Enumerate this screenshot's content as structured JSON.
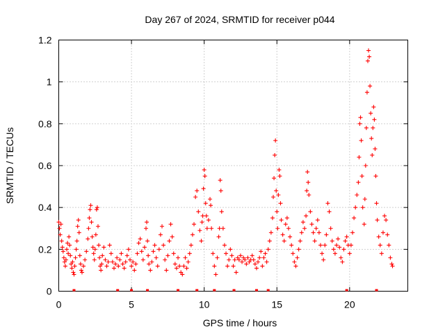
{
  "chart_data": {
    "type": "scatter",
    "title": "Day 267 of 2024, SRMTID for receiver p044",
    "xlabel": "GPS time / hours",
    "ylabel": "SRMTID / TECUs",
    "xlim": [
      0,
      24
    ],
    "ylim": [
      0,
      1.2
    ],
    "xticks": [
      0,
      5,
      10,
      15,
      20
    ],
    "xtick_labels": [
      "0",
      "5",
      "10",
      "15",
      "20"
    ],
    "yticks": [
      0,
      0.2,
      0.4,
      0.6,
      0.8,
      1.0,
      1.2
    ],
    "ytick_labels": [
      "0",
      "0.2",
      "0.4",
      "0.6",
      "0.8",
      "1",
      "1.2"
    ],
    "grid": true,
    "marker": "plus",
    "series": [
      {
        "name": "SRMTID",
        "color": "#ff0000",
        "points": [
          [
            0.0,
            0.33
          ],
          [
            0.05,
            0.3
          ],
          [
            0.1,
            0.27
          ],
          [
            0.15,
            0.32
          ],
          [
            0.2,
            0.24
          ],
          [
            0.25,
            0.21
          ],
          [
            0.3,
            0.19
          ],
          [
            0.35,
            0.16
          ],
          [
            0.4,
            0.14
          ],
          [
            0.45,
            0.12
          ],
          [
            0.5,
            0.15
          ],
          [
            0.55,
            0.2
          ],
          [
            0.6,
            0.23
          ],
          [
            0.65,
            0.18
          ],
          [
            0.7,
            0.26
          ],
          [
            0.75,
            0.22
          ],
          [
            0.8,
            0.17
          ],
          [
            0.85,
            0.13
          ],
          [
            0.9,
            0.11
          ],
          [
            0.95,
            0.14
          ],
          [
            1.0,
            0.09
          ],
          [
            1.05,
            0.08
          ],
          [
            1.1,
            0.12
          ],
          [
            1.15,
            0.16
          ],
          [
            1.2,
            0.2
          ],
          [
            1.25,
            0.24
          ],
          [
            1.3,
            0.31
          ],
          [
            1.35,
            0.34
          ],
          [
            1.4,
            0.28
          ],
          [
            1.45,
            0.17
          ],
          [
            1.5,
            0.13
          ],
          [
            1.55,
            0.1
          ],
          [
            1.6,
            0.09
          ],
          [
            1.7,
            0.12
          ],
          [
            1.8,
            0.15
          ],
          [
            1.9,
            0.19
          ],
          [
            2.0,
            0.25
          ],
          [
            2.05,
            0.3
          ],
          [
            2.1,
            0.35
          ],
          [
            2.15,
            0.39
          ],
          [
            2.2,
            0.41
          ],
          [
            2.25,
            0.33
          ],
          [
            2.3,
            0.26
          ],
          [
            2.35,
            0.21
          ],
          [
            2.4,
            0.18
          ],
          [
            2.45,
            0.15
          ],
          [
            2.5,
            0.2
          ],
          [
            2.55,
            0.27
          ],
          [
            2.6,
            0.39
          ],
          [
            2.65,
            0.4
          ],
          [
            2.7,
            0.31
          ],
          [
            2.75,
            0.22
          ],
          [
            2.8,
            0.16
          ],
          [
            2.85,
            0.12
          ],
          [
            2.9,
            0.1
          ],
          [
            2.95,
            0.13
          ],
          [
            3.0,
            0.17
          ],
          [
            3.1,
            0.21
          ],
          [
            3.2,
            0.15
          ],
          [
            3.3,
            0.12
          ],
          [
            3.4,
            0.14
          ],
          [
            3.5,
            0.22
          ],
          [
            3.6,
            0.18
          ],
          [
            3.7,
            0.14
          ],
          [
            3.8,
            0.11
          ],
          [
            3.9,
            0.13
          ],
          [
            4.0,
            0.16
          ],
          [
            4.1,
            0.12
          ],
          [
            4.2,
            0.15
          ],
          [
            4.3,
            0.18
          ],
          [
            4.4,
            0.13
          ],
          [
            4.5,
            0.11
          ],
          [
            4.6,
            0.14
          ],
          [
            4.7,
            0.17
          ],
          [
            4.8,
            0.2
          ],
          [
            4.9,
            0.15
          ],
          [
            5.0,
            0.12
          ],
          [
            5.1,
            0.14
          ],
          [
            5.2,
            0.1
          ],
          [
            5.3,
            0.13
          ],
          [
            5.4,
            0.18
          ],
          [
            5.5,
            0.23
          ],
          [
            5.6,
            0.25
          ],
          [
            5.7,
            0.19
          ],
          [
            5.8,
            0.15
          ],
          [
            5.9,
            0.21
          ],
          [
            6.0,
            0.3
          ],
          [
            6.05,
            0.33
          ],
          [
            6.1,
            0.24
          ],
          [
            6.15,
            0.17
          ],
          [
            6.2,
            0.13
          ],
          [
            6.3,
            0.1
          ],
          [
            6.4,
            0.14
          ],
          [
            6.5,
            0.19
          ],
          [
            6.6,
            0.22
          ],
          [
            6.7,
            0.16
          ],
          [
            6.8,
            0.12
          ],
          [
            6.9,
            0.2
          ],
          [
            7.0,
            0.27
          ],
          [
            7.1,
            0.31
          ],
          [
            7.2,
            0.22
          ],
          [
            7.3,
            0.15
          ],
          [
            7.4,
            0.1
          ],
          [
            7.5,
            0.17
          ],
          [
            7.6,
            0.24
          ],
          [
            7.7,
            0.32
          ],
          [
            7.8,
            0.26
          ],
          [
            7.9,
            0.18
          ],
          [
            8.0,
            0.13
          ],
          [
            8.1,
            0.11
          ],
          [
            8.2,
            0.16
          ],
          [
            8.3,
            0.12
          ],
          [
            8.4,
            0.09
          ],
          [
            8.5,
            0.08
          ],
          [
            8.6,
            0.12
          ],
          [
            8.7,
            0.16
          ],
          [
            8.8,
            0.11
          ],
          [
            8.9,
            0.14
          ],
          [
            9.0,
            0.18
          ],
          [
            9.1,
            0.22
          ],
          [
            9.2,
            0.27
          ],
          [
            9.3,
            0.32
          ],
          [
            9.4,
            0.45
          ],
          [
            9.5,
            0.48
          ],
          [
            9.6,
            0.38
          ],
          [
            9.7,
            0.29
          ],
          [
            9.8,
            0.24
          ],
          [
            9.85,
            0.33
          ],
          [
            9.9,
            0.36
          ],
          [
            9.95,
            0.49
          ],
          [
            10.0,
            0.58
          ],
          [
            10.05,
            0.55
          ],
          [
            10.1,
            0.42
          ],
          [
            10.15,
            0.36
          ],
          [
            10.2,
            0.3
          ],
          [
            10.3,
            0.34
          ],
          [
            10.4,
            0.44
          ],
          [
            10.45,
            0.41
          ],
          [
            10.5,
            0.3
          ],
          [
            10.6,
            0.18
          ],
          [
            10.7,
            0.12
          ],
          [
            10.8,
            0.08
          ],
          [
            10.9,
            0.16
          ],
          [
            11.0,
            0.26
          ],
          [
            11.05,
            0.3
          ],
          [
            11.1,
            0.53
          ],
          [
            11.15,
            0.48
          ],
          [
            11.2,
            0.38
          ],
          [
            11.3,
            0.3
          ],
          [
            11.4,
            0.22
          ],
          [
            11.5,
            0.18
          ],
          [
            11.6,
            0.12
          ],
          [
            11.7,
            0.15
          ],
          [
            11.8,
            0.2
          ],
          [
            11.9,
            0.17
          ],
          [
            12.0,
            0.12
          ],
          [
            12.1,
            0.15
          ],
          [
            12.2,
            0.09
          ],
          [
            12.3,
            0.16
          ],
          [
            12.4,
            0.15
          ],
          [
            12.5,
            0.17
          ],
          [
            12.6,
            0.14
          ],
          [
            12.7,
            0.16
          ],
          [
            12.8,
            0.15
          ],
          [
            12.9,
            0.13
          ],
          [
            13.0,
            0.16
          ],
          [
            13.1,
            0.14
          ],
          [
            13.2,
            0.15
          ],
          [
            13.3,
            0.17
          ],
          [
            13.4,
            0.15
          ],
          [
            13.5,
            0.13
          ],
          [
            13.6,
            0.11
          ],
          [
            13.7,
            0.14
          ],
          [
            13.8,
            0.16
          ],
          [
            13.9,
            0.19
          ],
          [
            14.0,
            0.12
          ],
          [
            14.1,
            0.16
          ],
          [
            14.2,
            0.18
          ],
          [
            14.3,
            0.14
          ],
          [
            14.4,
            0.2
          ],
          [
            14.5,
            0.24
          ],
          [
            14.6,
            0.28
          ],
          [
            14.7,
            0.35
          ],
          [
            14.75,
            0.45
          ],
          [
            14.8,
            0.54
          ],
          [
            14.85,
            0.65
          ],
          [
            14.9,
            0.72
          ],
          [
            14.95,
            0.48
          ],
          [
            15.0,
            0.38
          ],
          [
            15.05,
            0.3
          ],
          [
            15.1,
            0.46
          ],
          [
            15.15,
            0.58
          ],
          [
            15.2,
            0.55
          ],
          [
            15.25,
            0.42
          ],
          [
            15.3,
            0.34
          ],
          [
            15.4,
            0.27
          ],
          [
            15.5,
            0.24
          ],
          [
            15.6,
            0.32
          ],
          [
            15.7,
            0.35
          ],
          [
            15.8,
            0.3
          ],
          [
            15.9,
            0.26
          ],
          [
            16.0,
            0.22
          ],
          [
            16.1,
            0.18
          ],
          [
            16.2,
            0.14
          ],
          [
            16.3,
            0.12
          ],
          [
            16.4,
            0.16
          ],
          [
            16.5,
            0.2
          ],
          [
            16.6,
            0.24
          ],
          [
            16.7,
            0.28
          ],
          [
            16.8,
            0.33
          ],
          [
            16.9,
            0.3
          ],
          [
            17.0,
            0.36
          ],
          [
            17.05,
            0.48
          ],
          [
            17.1,
            0.57
          ],
          [
            17.15,
            0.52
          ],
          [
            17.2,
            0.46
          ],
          [
            17.3,
            0.38
          ],
          [
            17.4,
            0.32
          ],
          [
            17.5,
            0.28
          ],
          [
            17.6,
            0.24
          ],
          [
            17.7,
            0.3
          ],
          [
            17.8,
            0.34
          ],
          [
            17.9,
            0.28
          ],
          [
            18.0,
            0.22
          ],
          [
            18.1,
            0.18
          ],
          [
            18.2,
            0.15
          ],
          [
            18.3,
            0.22
          ],
          [
            18.4,
            0.27
          ],
          [
            18.5,
            0.42
          ],
          [
            18.6,
            0.38
          ],
          [
            18.7,
            0.3
          ],
          [
            18.8,
            0.24
          ],
          [
            18.9,
            0.2
          ],
          [
            19.0,
            0.18
          ],
          [
            19.1,
            0.22
          ],
          [
            19.2,
            0.25
          ],
          [
            19.3,
            0.21
          ],
          [
            19.4,
            0.16
          ],
          [
            19.5,
            0.14
          ],
          [
            19.6,
            0.2
          ],
          [
            19.7,
            0.24
          ],
          [
            19.8,
            0.26
          ],
          [
            19.9,
            0.22
          ],
          [
            20.0,
            0.18
          ],
          [
            20.1,
            0.22
          ],
          [
            20.2,
            0.28
          ],
          [
            20.3,
            0.35
          ],
          [
            20.4,
            0.4
          ],
          [
            20.5,
            0.46
          ],
          [
            20.6,
            0.52
          ],
          [
            20.65,
            0.64
          ],
          [
            20.7,
            0.8
          ],
          [
            20.75,
            0.83
          ],
          [
            20.8,
            0.72
          ],
          [
            20.85,
            0.55
          ],
          [
            20.9,
            0.4
          ],
          [
            21.0,
            0.32
          ],
          [
            21.05,
            0.44
          ],
          [
            21.1,
            0.6
          ],
          [
            21.15,
            0.78
          ],
          [
            21.2,
            0.95
          ],
          [
            21.25,
            1.1
          ],
          [
            21.3,
            1.15
          ],
          [
            21.35,
            1.12
          ],
          [
            21.4,
            0.98
          ],
          [
            21.45,
            0.85
          ],
          [
            21.5,
            0.73
          ],
          [
            21.55,
            0.65
          ],
          [
            21.6,
            0.78
          ],
          [
            21.65,
            0.88
          ],
          [
            21.7,
            0.82
          ],
          [
            21.75,
            0.68
          ],
          [
            21.8,
            0.55
          ],
          [
            21.85,
            0.42
          ],
          [
            21.9,
            0.34
          ],
          [
            22.0,
            0.26
          ],
          [
            22.1,
            0.22
          ],
          [
            22.2,
            0.18
          ],
          [
            22.3,
            0.28
          ],
          [
            22.4,
            0.36
          ],
          [
            22.5,
            0.34
          ],
          [
            22.6,
            0.27
          ],
          [
            22.7,
            0.22
          ],
          [
            22.8,
            0.16
          ],
          [
            22.9,
            0.13
          ],
          [
            22.95,
            0.12
          ]
        ]
      }
    ],
    "baseline_markers_hours": [
      1.05,
      4.05,
      5.0,
      6.1,
      8.2,
      9.5,
      10.7,
      12.05,
      13.6,
      14.4,
      19.8,
      21.85
    ]
  }
}
